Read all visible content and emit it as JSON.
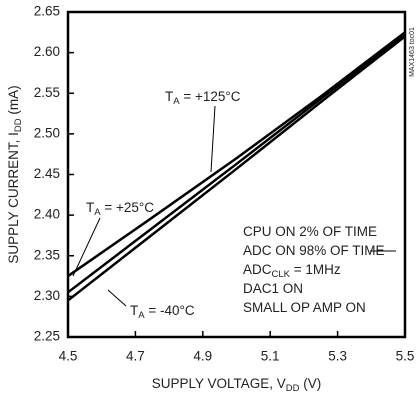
{
  "chart_data": {
    "type": "line",
    "xlabel": {
      "main": "SUPPLY VOLTAGE, V",
      "sub": "DD",
      "rest": " (V)"
    },
    "ylabel": {
      "main": "SUPPLY CURRENT, I",
      "sub": "DD",
      "rest": " (mA)"
    },
    "side_note": "MAX1463 toc01",
    "xlim": [
      4.5,
      5.5
    ],
    "xticks": [
      4.5,
      4.7,
      4.9,
      5.1,
      5.3,
      5.5
    ],
    "ylim": [
      2.25,
      2.65
    ],
    "yticks": [
      2.25,
      {
        "value": 2.3,
        "label": "2.30"
      },
      2.35,
      {
        "value": 2.4,
        "label": "2.40"
      },
      2.45,
      {
        "value": 2.5,
        "label": "2.50"
      },
      2.55,
      {
        "value": 2.6,
        "label": "2.60"
      },
      2.65
    ],
    "x": [
      4.5,
      4.75,
      5.0,
      5.25,
      5.5
    ],
    "series": [
      {
        "label": {
          "main": "T",
          "sub": "A",
          "rest": " = +125°C"
        },
        "color": "#000000",
        "values": [
          2.325,
          2.397,
          2.47,
          2.546,
          2.625
        ]
      },
      {
        "label": {
          "main": "T",
          "sub": "A",
          "rest": " = +25°C"
        },
        "color": "#000000",
        "values": [
          2.305,
          2.384,
          2.463,
          2.543,
          2.623
        ]
      },
      {
        "label": {
          "main": "T",
          "sub": "A",
          "rest": " = -40°C"
        },
        "color": "#000000",
        "values": [
          2.295,
          2.376,
          2.457,
          2.539,
          2.62
        ]
      }
    ],
    "notes": [
      {
        "main": "CPU ON 2% OF TIME"
      },
      {
        "main": "ADC ON 98% OF TIME"
      },
      {
        "main": "ADC",
        "sub": "CLK",
        "rest": " = 1MHz"
      },
      {
        "main": "DAC1 ON"
      },
      {
        "main": "SMALL OP AMP ON"
      }
    ]
  }
}
